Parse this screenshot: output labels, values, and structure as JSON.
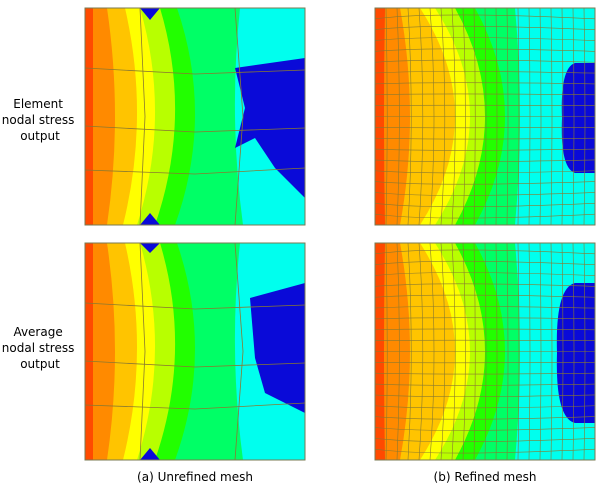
{
  "rows": [
    {
      "label": [
        "Element",
        "nodal stress",
        "output"
      ]
    },
    {
      "label": [
        "Average",
        "nodal stress",
        "output"
      ]
    }
  ],
  "columns": [
    {
      "caption": "(a) Unrefined mesh"
    },
    {
      "caption": "(b) Refined mesh"
    }
  ]
}
